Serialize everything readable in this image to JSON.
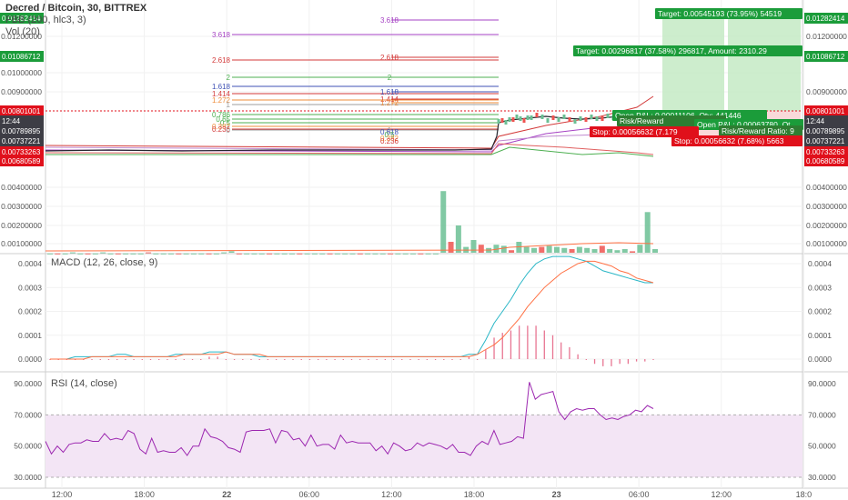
{
  "header": {
    "symbol_title": "Decred / Bitcoin, 30, BITTREX",
    "study_fbb": "FBB (200, hlc3, 3)",
    "study_vol": "Vol (20)",
    "study_macd": "MACD (12, 26, close, 9)",
    "study_rsi": "RSI (14, close)"
  },
  "colors": {
    "up": "#6bbf94",
    "down": "#ef5350",
    "price_line": "#26262e",
    "green_tag": "#1b9c3a",
    "red_tag": "#e0101b",
    "dark_tag": "#3d3d45",
    "macd_line": "#29b6c6",
    "signal_line": "#ff7043",
    "histogram": "#e87592",
    "rsi_line": "#9c27b0",
    "rsi_band": "#f3e5f5",
    "fib_purple": "#a642c4",
    "fib_red": "#d33a3a",
    "fib_green": "#4caf50",
    "fib_blue": "#3f51b5",
    "fib_orange": "#ef8c3a",
    "fib_gray": "#9e9e9e"
  },
  "chart_data": [
    {
      "type": "candlestick",
      "pane": "price",
      "title": "Decred / Bitcoin, 30, BITTREX",
      "y_ticks": [
        "0.01200000",
        "0.01000000",
        "0.00900000",
        "0.00400000",
        "0.00300000",
        "0.00200000",
        "0.00100000"
      ],
      "y_tick_values": [
        0.012,
        0.01,
        0.009,
        0.004,
        0.003,
        0.002,
        0.001
      ],
      "price_tags": [
        {
          "label": "0.01282414",
          "value": 0.01282414,
          "color": "green"
        },
        {
          "label": "0.01086712",
          "value": 0.01086712,
          "color": "green"
        },
        {
          "label": "0.00801001",
          "value": 0.00801001,
          "color": "red"
        },
        {
          "label": "12:44",
          "value": 0.0077,
          "color": "dark"
        },
        {
          "label": "0.00789895",
          "value": 0.00789895,
          "color": "dark"
        },
        {
          "label": "0.00737221",
          "value": 0.00737221,
          "color": "dark"
        },
        {
          "label": "0.00733263",
          "value": 0.00733263,
          "color": "red"
        },
        {
          "label": "0.00680589",
          "value": 0.00680589,
          "color": "red"
        }
      ],
      "right_tags": [
        {
          "label": "0.01282414",
          "value": 0.01282414,
          "color": "green"
        },
        {
          "label": "0.01200000",
          "value": 0.012,
          "color": "none"
        },
        {
          "label": "0.01086712",
          "value": 0.01086712,
          "color": "green"
        },
        {
          "label": "0.00900000",
          "value": 0.009,
          "color": "none"
        },
        {
          "label": "0.00801001",
          "value": 0.00801001,
          "color": "red"
        },
        {
          "label": "12:44",
          "value": 0.0077,
          "color": "dark"
        },
        {
          "label": "0.00789895",
          "value": 0.00789895,
          "color": "dark"
        },
        {
          "label": "0.00737221",
          "value": 0.00737221,
          "color": "dark"
        },
        {
          "label": "0.00733263",
          "value": 0.00733263,
          "color": "red"
        },
        {
          "label": "0.00680589",
          "value": 0.00680589,
          "color": "red"
        },
        {
          "label": "0.00400000",
          "value": 0.004,
          "color": "none"
        },
        {
          "label": "0.00300000",
          "value": 0.003,
          "color": "none"
        },
        {
          "label": "0.00200000",
          "value": 0.002,
          "color": "none"
        },
        {
          "label": "0.00100000",
          "value": 0.001,
          "color": "none"
        }
      ],
      "fib_levels_left": [
        {
          "label": "3.618",
          "color": "purple"
        },
        {
          "label": "2.618",
          "color": "red"
        },
        {
          "label": "2",
          "color": "green"
        },
        {
          "label": "1.618",
          "color": "blue"
        },
        {
          "label": "1.414",
          "color": "red"
        },
        {
          "label": "1.272",
          "color": "orange"
        },
        {
          "label": "1",
          "color": "gray"
        },
        {
          "label": "0.786",
          "color": "green"
        },
        {
          "label": "0.65",
          "color": "green"
        },
        {
          "label": "0.5",
          "color": "green"
        },
        {
          "label": "0.382",
          "color": "orange"
        },
        {
          "label": "0.236",
          "color": "red"
        },
        {
          "label": "0",
          "color": "gray"
        }
      ],
      "fib_levels_mid": [
        {
          "label": "3.618",
          "color": "purple"
        },
        {
          "label": "2.618",
          "color": "red"
        },
        {
          "label": "2",
          "color": "green"
        },
        {
          "label": "1.618",
          "color": "blue"
        },
        {
          "label": "1.414",
          "color": "red"
        },
        {
          "label": "1.272",
          "color": "orange"
        },
        {
          "label": "1",
          "color": "gray"
        },
        {
          "label": "0.618",
          "color": "blue"
        },
        {
          "label": "0.5",
          "color": "green"
        },
        {
          "label": "0.382",
          "color": "orange"
        },
        {
          "label": "0.236",
          "color": "red"
        }
      ],
      "positions": [
        {
          "target": "Target: 0.00545193 (73.95%) 54519",
          "open_pnl": "Open P&L: 0.00063780, Qt",
          "rr": "Risk/Reward Ratio: 9",
          "stop": "Stop: 0.00056632 (7.68%) 5663"
        },
        {
          "target": "Target: 0.00296817 (37.58%) 296817, Amount: 2310.29",
          "open_pnl": "Open P&L: 0.00011106, Qty: 441446",
          "rr": "Risk/Reward",
          "stop": "Stop: 0.00056632 (7.179"
        }
      ]
    },
    {
      "type": "bar",
      "pane": "volume",
      "title": "Vol (20)",
      "values": [
        0.0001,
        0.0001,
        0.0001,
        0.0002,
        0.0001,
        0.0001,
        0.0001,
        0.0002,
        0.0001,
        0.0001,
        0.0001,
        0.0001,
        0.0001,
        0.0002,
        0.0001,
        0.0001,
        0.0001,
        0.0001,
        0.0001,
        0.0001,
        0.0001,
        0.0001,
        0.0001,
        0.0002,
        0.0003,
        0.0001,
        0.0001,
        0.0001,
        0.0001,
        0.0001,
        0.0001,
        0.0001,
        0.0001,
        0.0001,
        0.0001,
        0.0001,
        0.0001,
        0.0001,
        0.0001,
        0.0001,
        0.0001,
        0.0001,
        0.0001,
        0.0001,
        0.0001,
        0.0001,
        0.0001,
        0.0001,
        0.0001,
        0.0001,
        0.0001,
        0.0001,
        0.0038,
        0.0011,
        0.002,
        0.0007,
        0.0012,
        0.0009,
        0.0006,
        0.0009,
        0.0008,
        0.0004,
        0.0011,
        0.0007,
        0.0006,
        0.0007,
        0.0008,
        0.0007,
        0.0006,
        0.0005,
        0.0007,
        0.0006,
        0.0005,
        0.0008,
        0.0005,
        0.0004,
        0.0005,
        0.0003,
        0.0009,
        0.0027,
        0.0005
      ],
      "y_ticks": [
        "0.00400000",
        "0.00300000",
        "0.00200000",
        "0.00100000"
      ]
    },
    {
      "type": "line",
      "pane": "macd",
      "title": "MACD (12, 26, close, 9)",
      "series": [
        {
          "name": "MACD",
          "values": [
            0,
            0,
            0,
            1e-05,
            1e-05,
            1e-05,
            1e-05,
            1e-05,
            2e-05,
            2e-05,
            1e-05,
            1e-05,
            1e-05,
            1e-05,
            1e-05,
            2e-05,
            2e-05,
            2e-05,
            2e-05,
            3e-05,
            3e-05,
            3e-05,
            2e-05,
            2e-05,
            2e-05,
            1e-05,
            1e-05,
            1e-05,
            1e-05,
            1e-05,
            1e-05,
            1e-05,
            1e-05,
            1e-05,
            1e-05,
            1e-05,
            1e-05,
            1e-05,
            1e-05,
            1e-05,
            1e-05,
            1e-05,
            1e-05,
            1e-05,
            1e-05,
            1e-05,
            1e-05,
            1e-05,
            1e-05,
            1e-05,
            2e-05,
            2e-05,
            8e-05,
            0.00015,
            0.0002,
            0.00025,
            0.00031,
            0.00036,
            0.0004,
            0.00042,
            0.00043,
            0.00043,
            0.00043,
            0.00042,
            0.00041,
            0.00039,
            0.00037,
            0.00036,
            0.00035,
            0.00034,
            0.00033,
            0.00032,
            0.00032
          ]
        },
        {
          "name": "Signal",
          "values": [
            0,
            0,
            0,
            0,
            0,
            1e-05,
            1e-05,
            1e-05,
            1e-05,
            1e-05,
            1e-05,
            1e-05,
            1e-05,
            1e-05,
            1e-05,
            1e-05,
            2e-05,
            2e-05,
            2e-05,
            2e-05,
            2e-05,
            3e-05,
            2e-05,
            2e-05,
            2e-05,
            2e-05,
            1e-05,
            1e-05,
            1e-05,
            1e-05,
            1e-05,
            1e-05,
            1e-05,
            1e-05,
            1e-05,
            1e-05,
            1e-05,
            1e-05,
            1e-05,
            1e-05,
            1e-05,
            1e-05,
            1e-05,
            1e-05,
            1e-05,
            1e-05,
            1e-05,
            1e-05,
            1e-05,
            1e-05,
            1e-05,
            2e-05,
            4e-05,
            6e-05,
            9e-05,
            0.00013,
            0.00017,
            0.00022,
            0.00026,
            0.0003,
            0.00033,
            0.00036,
            0.00038,
            0.0004,
            0.00041,
            0.00041,
            0.0004,
            0.00039,
            0.00037,
            0.00036,
            0.00034,
            0.00033,
            0.00032
          ]
        }
      ],
      "histogram": [
        0,
        0,
        0,
        0,
        0,
        0,
        0,
        0,
        0,
        0,
        0,
        0,
        0,
        0,
        0,
        0,
        0,
        0,
        0,
        1e-05,
        1e-05,
        0,
        0,
        0,
        0,
        0,
        0,
        0,
        0,
        0,
        0,
        0,
        0,
        0,
        0,
        0,
        0,
        0,
        0,
        0,
        0,
        0,
        0,
        0,
        0,
        0,
        0,
        0,
        0,
        0,
        1e-05,
        0,
        4e-05,
        9e-05,
        0.00011,
        0.00012,
        0.00014,
        0.00014,
        0.00014,
        0.00012,
        0.0001,
        7e-05,
        5e-05,
        2e-05,
        0,
        -2e-05,
        -3e-05,
        -3e-05,
        -2e-05,
        -2e-05,
        -1e-05,
        -1e-05,
        0
      ],
      "y_ticks": [
        "0.0004",
        "0.0003",
        "0.0002",
        "0.0001",
        "0.0000"
      ],
      "y_tick_values": [
        0.0004,
        0.0003,
        0.0002,
        0.0001,
        0.0
      ]
    },
    {
      "type": "line",
      "pane": "rsi",
      "title": "RSI (14, close)",
      "series": [
        {
          "name": "RSI",
          "values": [
            53,
            45,
            50,
            46,
            51,
            52,
            52,
            54,
            53,
            53,
            58,
            54,
            55,
            54,
            60,
            58,
            48,
            45,
            55,
            46,
            47,
            46,
            46,
            49,
            44,
            50,
            50,
            61,
            56,
            55,
            53,
            49,
            48,
            46,
            59,
            60,
            60,
            60,
            61,
            52,
            60,
            59,
            54,
            55,
            50,
            57,
            50,
            51,
            51,
            48,
            57,
            52,
            53,
            52,
            52,
            52,
            47,
            50,
            45,
            52,
            50,
            47,
            48,
            52,
            50,
            52,
            51,
            50,
            48,
            51,
            46,
            46,
            44,
            50,
            53,
            51,
            60,
            51,
            52,
            53,
            56,
            55,
            91,
            80,
            83,
            84,
            85,
            72,
            67,
            72,
            74,
            73,
            74,
            74,
            70,
            67,
            68,
            67,
            69,
            70,
            73,
            72,
            76,
            74
          ]
        }
      ],
      "y_ticks": [
        "90.0000",
        "70.0000",
        "50.0000",
        "30.0000"
      ],
      "y_tick_values": [
        90,
        70,
        50,
        30
      ],
      "band": [
        30,
        70
      ]
    }
  ],
  "time_axis": {
    "labels": [
      "12:00",
      "18:00",
      "22",
      "06:00",
      "12:00",
      "18:00",
      "23",
      "06:00",
      "12:00",
      "18:0"
    ]
  }
}
